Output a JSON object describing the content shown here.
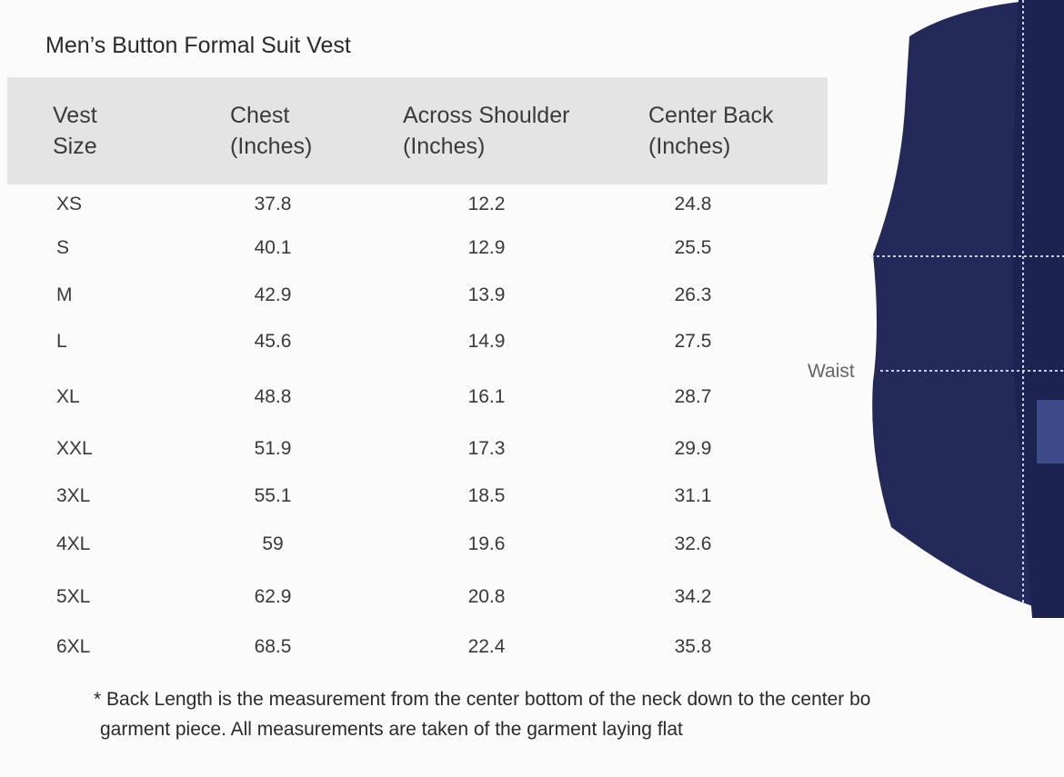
{
  "title": "Men’s Button Formal Suit Vest",
  "table": {
    "headers": [
      [
        "Vest",
        "Size"
      ],
      [
        "Chest",
        "(Inches)"
      ],
      [
        "Across Shoulder",
        "(Inches)"
      ],
      [
        "Center Back",
        "(Inches)"
      ]
    ],
    "rows": [
      [
        "XS",
        "37.8",
        "12.2",
        "24.8"
      ],
      [
        "S",
        "40.1",
        "12.9",
        "25.5"
      ],
      [
        "M",
        "42.9",
        "13.9",
        "26.3"
      ],
      [
        "L",
        "45.6",
        "14.9",
        "27.5"
      ],
      [
        "XL",
        "48.8",
        "16.1",
        "28.7"
      ],
      [
        "XXL",
        "51.9",
        "17.3",
        "29.9"
      ],
      [
        "3XL",
        "55.1",
        "18.5",
        "31.1"
      ],
      [
        "4XL",
        "59",
        "19.6",
        "32.6"
      ],
      [
        "5XL",
        "62.9",
        "20.8",
        "34.2"
      ],
      [
        "6XL",
        "68.5",
        "22.4",
        "35.8"
      ]
    ]
  },
  "footnote": [
    "* Back Length is the measurement from the center bottom of the neck down to the center bo",
    "garment piece. All measurements are taken of the garment laying flat"
  ],
  "image_label": "Waist"
}
